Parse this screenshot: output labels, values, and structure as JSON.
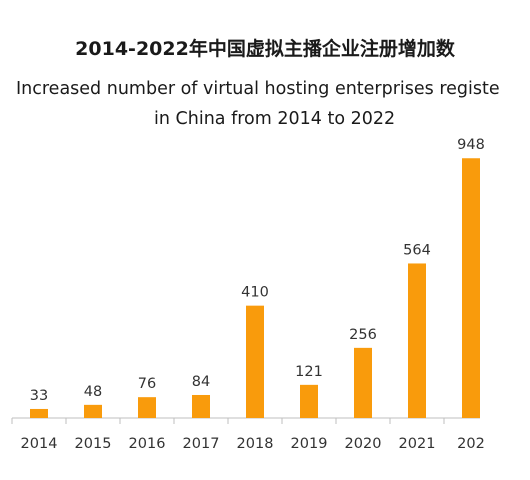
{
  "chart_data": {
    "type": "bar",
    "title": "2014-2022年中国虚拟主播企业注册增加数",
    "subtitle_line1": "Increased number of virtual hosting enterprises registe",
    "subtitle_line2": "in China from 2014 to 2022",
    "categories": [
      "2014",
      "2015",
      "2016",
      "2017",
      "2018",
      "2019",
      "2020",
      "2021",
      "202"
    ],
    "values": [
      33,
      48,
      76,
      84,
      410,
      121,
      256,
      564,
      948
    ],
    "data_labels": [
      "33",
      "48",
      "76",
      "84",
      "410",
      "121",
      "256",
      "564",
      "948"
    ],
    "ylim": [
      0,
      1000
    ],
    "grid": false,
    "legend": "none",
    "bar_color": "#F99B0C",
    "axis_color": "#BFBFBF"
  }
}
